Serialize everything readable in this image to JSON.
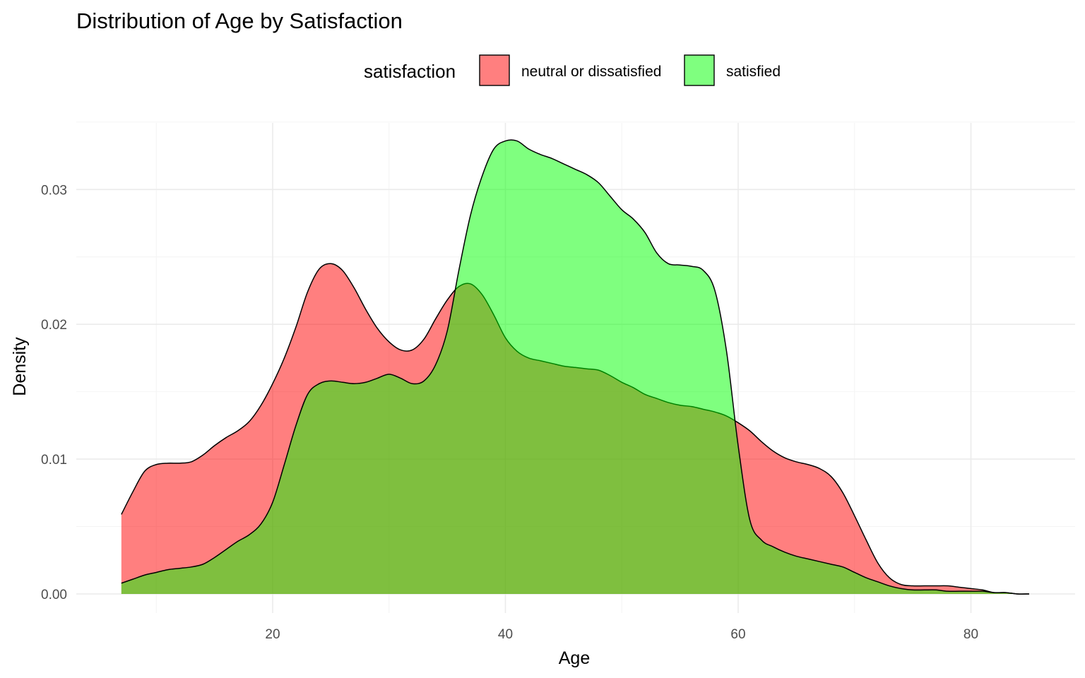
{
  "chart_data": {
    "type": "area",
    "subtype": "density",
    "title": "Distribution of Age by Satisfaction",
    "xlabel": "Age",
    "ylabel": "Density",
    "xlim": [
      7,
      85
    ],
    "ylim": [
      0,
      0.035
    ],
    "x_ticks": [
      20,
      40,
      60,
      80
    ],
    "y_ticks": [
      0.0,
      0.01,
      0.02,
      0.03
    ],
    "x_tick_labels": [
      "20",
      "40",
      "60",
      "80"
    ],
    "y_tick_labels": [
      "0.00",
      "0.01",
      "0.02",
      "0.03"
    ],
    "grid": true,
    "legend": {
      "title": "satisfaction",
      "position": "top"
    },
    "series": [
      {
        "name": "neutral or dissatisfied",
        "color": "#FF0000",
        "alpha": 0.5,
        "points": [
          [
            7,
            0.0059
          ],
          [
            8,
            0.0076
          ],
          [
            9,
            0.0091
          ],
          [
            10,
            0.0096
          ],
          [
            11,
            0.0097
          ],
          [
            12,
            0.0097
          ],
          [
            13,
            0.0098
          ],
          [
            14,
            0.0103
          ],
          [
            15,
            0.011
          ],
          [
            16,
            0.0116
          ],
          [
            17,
            0.0121
          ],
          [
            18,
            0.0128
          ],
          [
            19,
            0.014
          ],
          [
            20,
            0.0156
          ],
          [
            21,
            0.0175
          ],
          [
            22,
            0.0198
          ],
          [
            23,
            0.0224
          ],
          [
            24,
            0.0241
          ],
          [
            25,
            0.0245
          ],
          [
            26,
            0.024
          ],
          [
            27,
            0.0227
          ],
          [
            28,
            0.0211
          ],
          [
            29,
            0.0197
          ],
          [
            30,
            0.0187
          ],
          [
            31,
            0.0181
          ],
          [
            32,
            0.0181
          ],
          [
            33,
            0.0189
          ],
          [
            34,
            0.0204
          ],
          [
            35,
            0.0218
          ],
          [
            36,
            0.0228
          ],
          [
            37,
            0.023
          ],
          [
            38,
            0.0222
          ],
          [
            39,
            0.0207
          ],
          [
            40,
            0.019
          ],
          [
            41,
            0.018
          ],
          [
            42,
            0.0175
          ],
          [
            43,
            0.0173
          ],
          [
            44,
            0.0171
          ],
          [
            45,
            0.0169
          ],
          [
            46,
            0.0168
          ],
          [
            47,
            0.0167
          ],
          [
            48,
            0.0166
          ],
          [
            49,
            0.0162
          ],
          [
            50,
            0.0157
          ],
          [
            51,
            0.0153
          ],
          [
            52,
            0.0148
          ],
          [
            53,
            0.0145
          ],
          [
            54,
            0.0142
          ],
          [
            55,
            0.014
          ],
          [
            56,
            0.0139
          ],
          [
            57,
            0.0137
          ],
          [
            58,
            0.0135
          ],
          [
            59,
            0.0132
          ],
          [
            60,
            0.0127
          ],
          [
            61,
            0.0121
          ],
          [
            62,
            0.0113
          ],
          [
            63,
            0.0106
          ],
          [
            64,
            0.0101
          ],
          [
            65,
            0.0098
          ],
          [
            66,
            0.0096
          ],
          [
            67,
            0.0093
          ],
          [
            68,
            0.0087
          ],
          [
            69,
            0.0075
          ],
          [
            70,
            0.0058
          ],
          [
            71,
            0.004
          ],
          [
            72,
            0.0023
          ],
          [
            73,
            0.0012
          ],
          [
            74,
            0.0007
          ],
          [
            75,
            0.0006
          ],
          [
            76,
            0.0006
          ],
          [
            77,
            0.0006
          ],
          [
            78,
            0.0006
          ],
          [
            79,
            0.0005
          ],
          [
            80,
            0.0004
          ],
          [
            81,
            0.0003
          ],
          [
            82,
            0.0001
          ],
          [
            83,
            0.0001
          ],
          [
            84,
            0.0
          ],
          [
            85,
            0.0
          ]
        ]
      },
      {
        "name": "satisfied",
        "color": "#00FF00",
        "alpha": 0.5,
        "points": [
          [
            7,
            0.0008
          ],
          [
            8,
            0.0011
          ],
          [
            9,
            0.0014
          ],
          [
            10,
            0.0016
          ],
          [
            11,
            0.0018
          ],
          [
            12,
            0.0019
          ],
          [
            13,
            0.002
          ],
          [
            14,
            0.0022
          ],
          [
            15,
            0.0027
          ],
          [
            16,
            0.0033
          ],
          [
            17,
            0.0039
          ],
          [
            18,
            0.0044
          ],
          [
            19,
            0.0052
          ],
          [
            20,
            0.0068
          ],
          [
            21,
            0.0096
          ],
          [
            22,
            0.0125
          ],
          [
            23,
            0.0148
          ],
          [
            24,
            0.0156
          ],
          [
            25,
            0.0158
          ],
          [
            26,
            0.0157
          ],
          [
            27,
            0.0156
          ],
          [
            28,
            0.0157
          ],
          [
            29,
            0.016
          ],
          [
            30,
            0.0163
          ],
          [
            31,
            0.016
          ],
          [
            32,
            0.0156
          ],
          [
            33,
            0.0158
          ],
          [
            34,
            0.017
          ],
          [
            35,
            0.0195
          ],
          [
            36,
            0.024
          ],
          [
            37,
            0.0281
          ],
          [
            38,
            0.031
          ],
          [
            39,
            0.033
          ],
          [
            40,
            0.0336
          ],
          [
            41,
            0.0336
          ],
          [
            42,
            0.033
          ],
          [
            43,
            0.0326
          ],
          [
            44,
            0.0323
          ],
          [
            45,
            0.0319
          ],
          [
            46,
            0.0315
          ],
          [
            47,
            0.0311
          ],
          [
            48,
            0.0305
          ],
          [
            49,
            0.0295
          ],
          [
            50,
            0.0285
          ],
          [
            51,
            0.0278
          ],
          [
            52,
            0.0268
          ],
          [
            53,
            0.0253
          ],
          [
            54,
            0.0245
          ],
          [
            55,
            0.0244
          ],
          [
            56,
            0.0243
          ],
          [
            57,
            0.024
          ],
          [
            58,
            0.0225
          ],
          [
            59,
            0.018
          ],
          [
            60,
            0.011
          ],
          [
            61,
            0.0055
          ],
          [
            62,
            0.004
          ],
          [
            63,
            0.0035
          ],
          [
            64,
            0.0031
          ],
          [
            65,
            0.0028
          ],
          [
            66,
            0.0026
          ],
          [
            67,
            0.0024
          ],
          [
            68,
            0.0022
          ],
          [
            69,
            0.002
          ],
          [
            70,
            0.0016
          ],
          [
            71,
            0.0012
          ],
          [
            72,
            0.0009
          ],
          [
            73,
            0.0006
          ],
          [
            74,
            0.0004
          ],
          [
            75,
            0.0003
          ],
          [
            76,
            0.0003
          ],
          [
            77,
            0.0003
          ],
          [
            78,
            0.0002
          ],
          [
            79,
            0.0002
          ],
          [
            80,
            0.0002
          ],
          [
            81,
            0.0002
          ],
          [
            82,
            0.0001
          ],
          [
            83,
            0.0001
          ],
          [
            84,
            0.0
          ],
          [
            85,
            0.0
          ]
        ]
      }
    ]
  }
}
